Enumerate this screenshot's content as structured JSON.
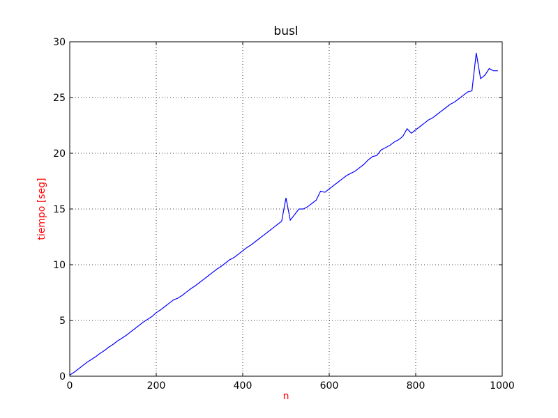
{
  "chart_data": {
    "type": "line",
    "title": "busl",
    "xlabel": "n",
    "ylabel": "tiempo [seg]",
    "xlabel_color": "#ff0000",
    "ylabel_color": "#ff0000",
    "xlim": [
      0,
      1000
    ],
    "ylim": [
      0,
      30
    ],
    "grid": true,
    "xticks": [
      0,
      200,
      400,
      600,
      800,
      1000
    ],
    "yticks": [
      0,
      5,
      10,
      15,
      20,
      25,
      30
    ],
    "series": [
      {
        "name": "busl",
        "color": "#0000ff",
        "x": [
          0,
          10,
          20,
          30,
          40,
          50,
          60,
          70,
          80,
          90,
          100,
          110,
          120,
          130,
          140,
          150,
          160,
          170,
          180,
          190,
          200,
          210,
          220,
          230,
          240,
          250,
          260,
          270,
          280,
          290,
          300,
          310,
          320,
          330,
          340,
          350,
          360,
          370,
          380,
          390,
          400,
          410,
          420,
          430,
          440,
          450,
          460,
          470,
          480,
          490,
          500,
          510,
          520,
          530,
          540,
          550,
          560,
          570,
          580,
          590,
          600,
          610,
          620,
          630,
          640,
          650,
          660,
          670,
          680,
          690,
          700,
          710,
          720,
          730,
          740,
          750,
          760,
          770,
          780,
          790,
          800,
          810,
          820,
          830,
          840,
          850,
          860,
          870,
          880,
          890,
          900,
          910,
          920,
          930,
          940,
          950,
          960,
          970,
          980,
          990
        ],
        "y": [
          0.1,
          0.35,
          0.65,
          0.95,
          1.25,
          1.5,
          1.75,
          2.05,
          2.3,
          2.6,
          2.85,
          3.15,
          3.4,
          3.65,
          3.95,
          4.25,
          4.55,
          4.85,
          5.1,
          5.35,
          5.7,
          5.95,
          6.25,
          6.55,
          6.85,
          7.0,
          7.25,
          7.55,
          7.85,
          8.1,
          8.4,
          8.7,
          9.0,
          9.3,
          9.6,
          9.85,
          10.15,
          10.45,
          10.65,
          10.95,
          11.25,
          11.55,
          11.8,
          12.1,
          12.4,
          12.7,
          13.0,
          13.3,
          13.6,
          13.9,
          16.0,
          14.0,
          14.5,
          15.0,
          15.0,
          15.2,
          15.5,
          15.8,
          16.6,
          16.5,
          16.8,
          17.1,
          17.4,
          17.7,
          18.0,
          18.2,
          18.4,
          18.7,
          19.0,
          19.4,
          19.7,
          19.8,
          20.3,
          20.5,
          20.7,
          21.0,
          21.2,
          21.5,
          22.2,
          21.8,
          22.1,
          22.4,
          22.7,
          23.0,
          23.2,
          23.5,
          23.8,
          24.1,
          24.4,
          24.6,
          24.9,
          25.2,
          25.5,
          25.6,
          29.0,
          26.7,
          27.0,
          27.6,
          27.4,
          27.4
        ]
      }
    ]
  }
}
